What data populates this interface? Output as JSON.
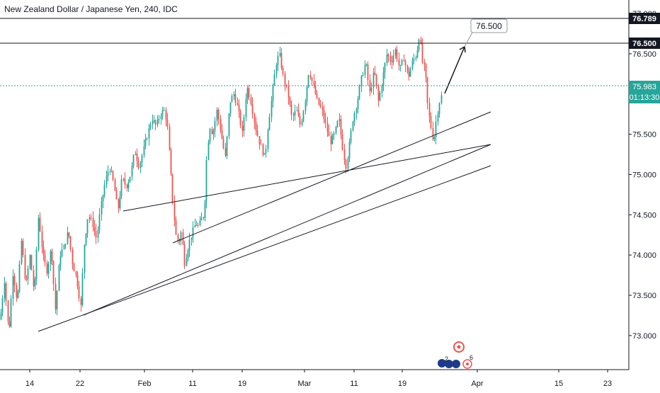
{
  "header": {
    "title": "New Zealand Dollar / Japanese Yen, 240, IDC"
  },
  "price_axis": {
    "current_price": "75.983",
    "countdown": "01:13:30",
    "level_labels": [
      "76.789",
      "76.500"
    ]
  },
  "annotation": {
    "callout": "76.500"
  },
  "events": {
    "badge": "6",
    "badge2": "2"
  },
  "colors": {
    "up": "#26a69a",
    "down": "#ef5350",
    "current_line": "#26a69a",
    "current_label_bg": "#26a69a",
    "level_label_bg": "#131722",
    "drawing": "#131722",
    "axis_text": "#131722",
    "grid": "#f0f3fa"
  },
  "chart_data": {
    "type": "candlestick",
    "title": "New Zealand Dollar / Japanese Yen, 240, IDC",
    "ylim": [
      72.7,
      77.15
    ],
    "y_ticks": [
      "77.000",
      "76.500",
      "76.000",
      "75.500",
      "75.000",
      "74.500",
      "74.000",
      "73.500",
      "73.000"
    ],
    "x_ticks": [
      "14",
      "22",
      "Feb",
      "11",
      "19",
      "Mar",
      "11",
      "19",
      "Apr",
      "15",
      "23"
    ],
    "horizontal_levels": [
      76.789,
      76.5
    ],
    "current_price": 75.983,
    "path_anchors": [
      [
        0,
        73.2
      ],
      [
        6,
        73.7
      ],
      [
        12,
        73.0
      ],
      [
        18,
        73.8
      ],
      [
        24,
        73.4
      ],
      [
        30,
        74.2
      ],
      [
        36,
        73.6
      ],
      [
        42,
        74.0
      ],
      [
        48,
        73.5
      ],
      [
        54,
        74.5
      ],
      [
        60,
        74.0
      ],
      [
        66,
        73.8
      ],
      [
        72,
        74.1
      ],
      [
        78,
        73.3
      ],
      [
        84,
        74.0
      ],
      [
        90,
        74.1
      ],
      [
        96,
        74.3
      ],
      [
        102,
        73.9
      ],
      [
        108,
        73.7
      ],
      [
        114,
        73.35
      ],
      [
        118,
        74.1
      ],
      [
        124,
        74.5
      ],
      [
        130,
        74.4
      ],
      [
        136,
        74.2
      ],
      [
        142,
        74.6
      ],
      [
        148,
        74.9
      ],
      [
        154,
        75.1
      ],
      [
        160,
        74.9
      ],
      [
        166,
        74.55
      ],
      [
        172,
        74.95
      ],
      [
        178,
        74.85
      ],
      [
        184,
        75.0
      ],
      [
        190,
        75.3
      ],
      [
        196,
        75.1
      ],
      [
        202,
        75.3
      ],
      [
        208,
        75.5
      ],
      [
        214,
        75.7
      ],
      [
        220,
        75.6
      ],
      [
        226,
        75.75
      ],
      [
        232,
        75.8
      ],
      [
        236,
        75.6
      ],
      [
        240,
        75.1
      ],
      [
        244,
        74.6
      ],
      [
        248,
        74.25
      ],
      [
        252,
        74.15
      ],
      [
        256,
        74.3
      ],
      [
        260,
        73.9
      ],
      [
        264,
        74.05
      ],
      [
        268,
        74.2
      ],
      [
        272,
        74.3
      ],
      [
        276,
        74.4
      ],
      [
        280,
        74.35
      ],
      [
        284,
        74.45
      ],
      [
        288,
        74.5
      ],
      [
        292,
        75.3
      ],
      [
        296,
        75.6
      ],
      [
        300,
        75.5
      ],
      [
        306,
        75.8
      ],
      [
        312,
        75.5
      ],
      [
        318,
        75.2
      ],
      [
        324,
        75.9
      ],
      [
        330,
        76.0
      ],
      [
        336,
        75.8
      ],
      [
        342,
        75.5
      ],
      [
        348,
        76.1
      ],
      [
        354,
        75.9
      ],
      [
        360,
        75.6
      ],
      [
        366,
        75.4
      ],
      [
        370,
        75.3
      ],
      [
        374,
        75.2
      ],
      [
        378,
        75.6
      ],
      [
        384,
        76.0
      ],
      [
        390,
        76.4
      ],
      [
        394,
        76.5
      ],
      [
        400,
        76.2
      ],
      [
        406,
        76.0
      ],
      [
        412,
        75.7
      ],
      [
        418,
        75.8
      ],
      [
        424,
        75.6
      ],
      [
        430,
        75.9
      ],
      [
        436,
        76.3
      ],
      [
        442,
        76.1
      ],
      [
        448,
        75.9
      ],
      [
        454,
        75.8
      ],
      [
        460,
        75.6
      ],
      [
        466,
        75.4
      ],
      [
        472,
        75.5
      ],
      [
        478,
        75.7
      ],
      [
        484,
        75.3
      ],
      [
        488,
        75.1
      ],
      [
        492,
        75.3
      ],
      [
        498,
        75.7
      ],
      [
        504,
        75.9
      ],
      [
        510,
        76.2
      ],
      [
        516,
        76.4
      ],
      [
        522,
        76.0
      ],
      [
        528,
        76.3
      ],
      [
        534,
        75.9
      ],
      [
        540,
        76.2
      ],
      [
        546,
        76.5
      ],
      [
        552,
        76.4
      ],
      [
        558,
        76.55
      ],
      [
        564,
        76.3
      ],
      [
        570,
        76.45
      ],
      [
        576,
        76.2
      ],
      [
        582,
        76.4
      ],
      [
        588,
        76.5
      ],
      [
        592,
        76.75
      ],
      [
        596,
        76.4
      ],
      [
        600,
        76.3
      ],
      [
        604,
        75.8
      ],
      [
        608,
        75.6
      ],
      [
        612,
        75.4
      ],
      [
        616,
        75.7
      ],
      [
        620,
        75.9
      ],
      [
        623,
        75.983
      ]
    ]
  }
}
